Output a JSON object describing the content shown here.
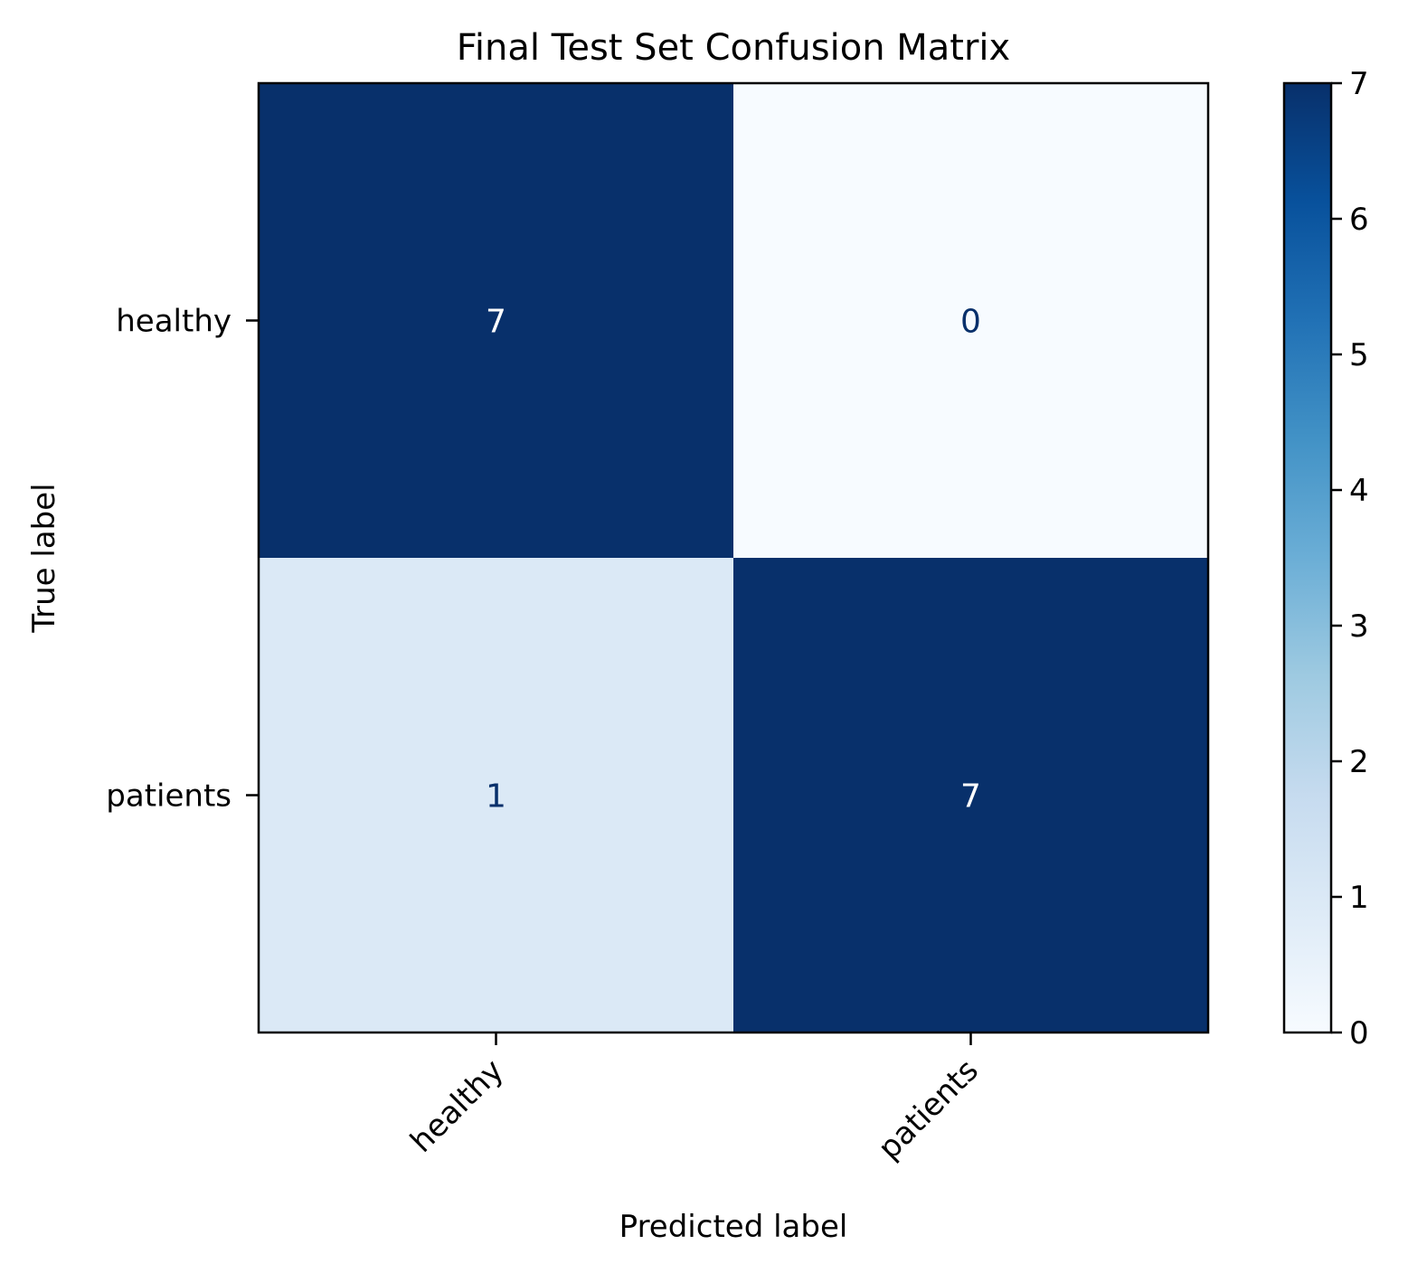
{
  "chart_data": {
    "type": "heatmap",
    "title": "Final Test Set Confusion Matrix",
    "xlabel": "Predicted label",
    "ylabel": "True label",
    "x_categories": [
      "healthy",
      "patients"
    ],
    "y_categories": [
      "healthy",
      "patients"
    ],
    "values": [
      [
        7,
        0
      ],
      [
        1,
        7
      ]
    ],
    "colormap": "Blues",
    "color_scale": {
      "min": 0,
      "max": 7
    },
    "colorbar_ticks": [
      "0",
      "1",
      "2",
      "3",
      "4",
      "5",
      "6",
      "7"
    ],
    "x_tick_rotation_deg": 45,
    "grid": false,
    "colors": {
      "low_text": "#08306b",
      "high_text": "#ffffff"
    }
  }
}
